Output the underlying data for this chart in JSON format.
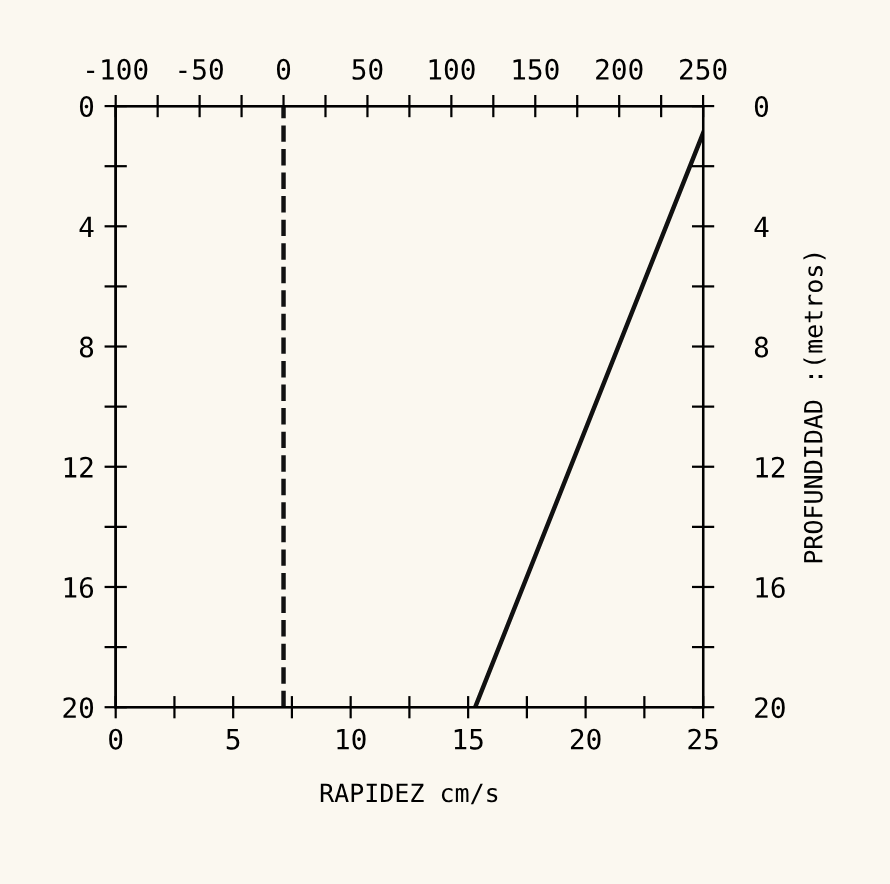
{
  "chart_data": {
    "type": "line",
    "xlabel": "RAPIDEZ cm/s",
    "y2label": "PROFUNDIDAD :(metros)",
    "xlim": [
      0,
      25
    ],
    "xticks": [
      0,
      {
        "value": 2.5,
        "label": null
      },
      5,
      {
        "value": 7.5,
        "label": null
      },
      10,
      {
        "value": 12.5,
        "label": null
      },
      15,
      {
        "value": 17.5,
        "label": null
      },
      20,
      {
        "value": 22.5,
        "label": null
      },
      25
    ],
    "x2lim": [
      -100,
      250
    ],
    "x2ticks": [
      -100,
      {
        "value": -75,
        "label": null
      },
      -50,
      {
        "value": -25,
        "label": null
      },
      0,
      {
        "value": 25,
        "label": null
      },
      50,
      {
        "value": 75,
        "label": null
      },
      100,
      {
        "value": 125,
        "label": null
      },
      150,
      {
        "value": 175,
        "label": null
      },
      200,
      {
        "value": 225,
        "label": null
      },
      250
    ],
    "ylim": [
      20,
      0
    ],
    "yticks": [
      0,
      {
        "value": 2,
        "label": null
      },
      4,
      {
        "value": 6,
        "label": null
      },
      8,
      {
        "value": 10,
        "label": null
      },
      12,
      {
        "value": 14,
        "label": null
      },
      16,
      {
        "value": 18,
        "label": null
      },
      20
    ],
    "y2lim": [
      20,
      0
    ],
    "y2ticks": [
      0,
      {
        "value": 2,
        "label": null
      },
      4,
      {
        "value": 6,
        "label": null
      },
      8,
      {
        "value": 10,
        "label": null
      },
      12,
      {
        "value": 14,
        "label": null
      },
      16,
      {
        "value": 18,
        "label": null
      },
      20
    ],
    "grid": false,
    "legend": false,
    "marker": "none",
    "series": [
      {
        "color": "#111111",
        "x": [
          25,
          15.3
        ],
        "values": [
          0.9,
          20
        ],
        "line_style": "solid"
      }
    ],
    "ref_lines": [
      {
        "axis": "x2",
        "value": 0,
        "color": "#111111",
        "line_style": "dashed"
      }
    ]
  }
}
